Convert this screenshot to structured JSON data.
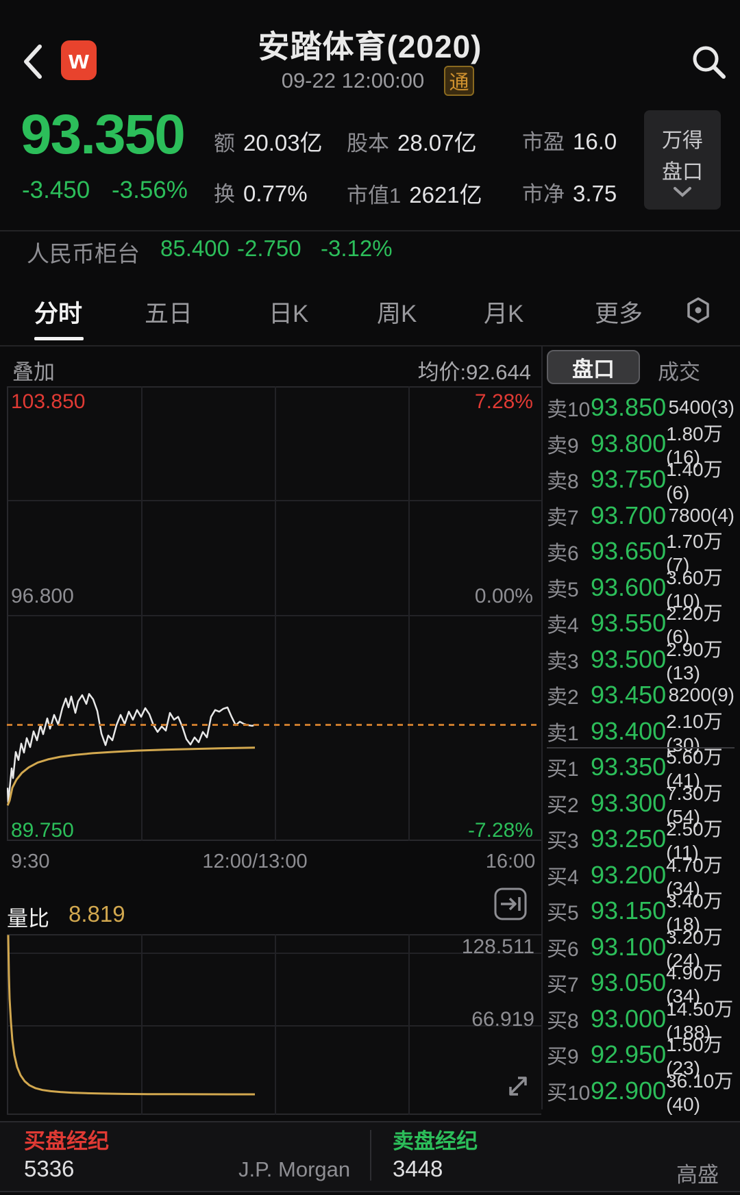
{
  "colors": {
    "up_red": "#e03a34",
    "down_green": "#2cbe5a",
    "avg_line_gold": "#d2a84f",
    "last_price_dash_orange": "#c97b2d",
    "price_line_white": "#e8e8e8",
    "badge_gold": "#d0922f",
    "logo_red": "#e8432d"
  },
  "header": {
    "title": "安踏体育(2020)",
    "datetime": "09-22 12:00:00",
    "badge": "通",
    "logo_letter": "w"
  },
  "quote": {
    "price": "93.350",
    "change": "-3.450",
    "change_pct": "-3.56%",
    "stats": [
      {
        "label": "额",
        "value": "20.03亿"
      },
      {
        "label": "股本",
        "value": "28.07亿"
      },
      {
        "label": "市盈",
        "value": "16.0"
      },
      {
        "label": "换",
        "value": "0.77%"
      },
      {
        "label": "市值1",
        "value": "2621亿"
      },
      {
        "label": "市净",
        "value": "3.75"
      }
    ],
    "wande_button_line1": "万得",
    "wande_button_line2": "盘口"
  },
  "rmb_counter": {
    "label": "人民币柜台",
    "price": "85.400",
    "change": "-2.750",
    "change_pct": "-3.12%"
  },
  "period_tabs": {
    "items": [
      {
        "label": "分时",
        "selected": true
      },
      {
        "label": "五日",
        "selected": false
      },
      {
        "label": "日K",
        "selected": false
      },
      {
        "label": "周K",
        "selected": false
      },
      {
        "label": "月K",
        "selected": false
      },
      {
        "label": "更多",
        "selected": false
      }
    ]
  },
  "chart_header": {
    "overlay_label": "叠加",
    "avg_price_label": "均价:92.644"
  },
  "chart_data": [
    {
      "type": "line",
      "title": "分时图 (intraday price)",
      "x_axis_labels": [
        "9:30",
        "12:00/13:00",
        "16:00"
      ],
      "ylim": [
        89.75,
        103.85
      ],
      "prev_close": 96.8,
      "last_price": 93.35,
      "avg_price": 92.644,
      "y_labels_left": [
        "103.850",
        "96.800",
        "89.750"
      ],
      "y_labels_right": [
        "7.28%",
        "0.00%",
        "-7.28%"
      ],
      "grid": true,
      "series": [
        {
          "name": "price",
          "color": "#e8e8e8",
          "width": 2.5,
          "points": [
            [
              1,
              91.4
            ],
            [
              2,
              90.95
            ],
            [
              4,
              91.36
            ],
            [
              7,
              92.0
            ],
            [
              9,
              91.7
            ],
            [
              13,
              92.51
            ],
            [
              17,
              92.26
            ],
            [
              21,
              92.77
            ],
            [
              25,
              92.49
            ],
            [
              29,
              92.94
            ],
            [
              34,
              92.66
            ],
            [
              39,
              93.15
            ],
            [
              44,
              92.87
            ],
            [
              49,
              93.34
            ],
            [
              53,
              93.06
            ],
            [
              59,
              93.55
            ],
            [
              63,
              93.23
            ],
            [
              69,
              93.66
            ],
            [
              75,
              93.36
            ],
            [
              81,
              93.87
            ],
            [
              86,
              94.17
            ],
            [
              90,
              93.89
            ],
            [
              94,
              94.23
            ],
            [
              100,
              93.72
            ],
            [
              104,
              94.08
            ],
            [
              110,
              94.27
            ],
            [
              116,
              94.0
            ],
            [
              120,
              94.31
            ],
            [
              126,
              94.14
            ],
            [
              132,
              93.78
            ],
            [
              138,
              93.08
            ],
            [
              144,
              92.72
            ],
            [
              148,
              93.02
            ],
            [
              154,
              92.87
            ],
            [
              160,
              93.34
            ],
            [
              166,
              93.66
            ],
            [
              172,
              93.38
            ],
            [
              178,
              93.76
            ],
            [
              184,
              93.51
            ],
            [
              190,
              93.81
            ],
            [
              196,
              93.6
            ],
            [
              202,
              93.87
            ],
            [
              208,
              93.68
            ],
            [
              214,
              93.34
            ],
            [
              220,
              93.13
            ],
            [
              226,
              93.3
            ],
            [
              232,
              93.17
            ],
            [
              238,
              93.72
            ],
            [
              244,
              93.51
            ],
            [
              250,
              93.6
            ],
            [
              256,
              93.3
            ],
            [
              262,
              92.91
            ],
            [
              268,
              92.74
            ],
            [
              274,
              92.96
            ],
            [
              280,
              92.81
            ],
            [
              286,
              93.13
            ],
            [
              292,
              92.96
            ],
            [
              298,
              93.6
            ],
            [
              304,
              93.81
            ],
            [
              310,
              93.76
            ],
            [
              316,
              93.85
            ],
            [
              322,
              93.89
            ],
            [
              328,
              93.6
            ],
            [
              334,
              93.34
            ],
            [
              340,
              93.45
            ],
            [
              346,
              93.38
            ],
            [
              352,
              93.34
            ],
            [
              358,
              93.32
            ],
            [
              362,
              93.35
            ]
          ]
        },
        {
          "name": "avg",
          "color": "#d2a84f",
          "width": 3,
          "points": [
            [
              1,
              90.85
            ],
            [
              4,
              91.0
            ],
            [
              8,
              91.4
            ],
            [
              14,
              91.65
            ],
            [
              22,
              91.86
            ],
            [
              32,
              92.03
            ],
            [
              45,
              92.18
            ],
            [
              60,
              92.28
            ],
            [
              78,
              92.36
            ],
            [
              100,
              92.42
            ],
            [
              125,
              92.47
            ],
            [
              155,
              92.51
            ],
            [
              190,
              92.55
            ],
            [
              230,
              92.58
            ],
            [
              270,
              92.6
            ],
            [
              310,
              92.62
            ],
            [
              362,
              92.644
            ]
          ]
        }
      ]
    },
    {
      "type": "line",
      "title": "量比 (volume ratio)",
      "label": "量比",
      "value": "8.819",
      "y_labels": [
        "128.511",
        "66.919"
      ],
      "ylim": [
        -8.6,
        144.8
      ],
      "grid": true,
      "series": [
        {
          "name": "volume_ratio",
          "color": "#d2a84f",
          "width": 3,
          "points": [
            [
              2,
              144
            ],
            [
              3,
              110
            ],
            [
              4,
              90
            ],
            [
              6,
              70
            ],
            [
              8,
              55
            ],
            [
              11,
              42
            ],
            [
              15,
              32
            ],
            [
              20,
              25
            ],
            [
              26,
              20
            ],
            [
              33,
              16.5
            ],
            [
              42,
              14
            ],
            [
              52,
              12.5
            ],
            [
              64,
              11.5
            ],
            [
              78,
              10.8
            ],
            [
              95,
              10.2
            ],
            [
              115,
              9.8
            ],
            [
              140,
              9.5
            ],
            [
              170,
              9.2
            ],
            [
              205,
              9.0
            ],
            [
              245,
              8.95
            ],
            [
              285,
              8.9
            ],
            [
              325,
              8.85
            ],
            [
              362,
              8.82
            ]
          ]
        }
      ]
    }
  ],
  "orderbook": {
    "tabs": [
      {
        "label": "盘口",
        "selected": true
      },
      {
        "label": "成交",
        "selected": false
      }
    ],
    "asks": [
      {
        "label": "卖10",
        "price": "93.850",
        "volume": "5400(3)"
      },
      {
        "label": "卖9",
        "price": "93.800",
        "volume": "1.80万(16)"
      },
      {
        "label": "卖8",
        "price": "93.750",
        "volume": "1.40万(6)"
      },
      {
        "label": "卖7",
        "price": "93.700",
        "volume": "7800(4)"
      },
      {
        "label": "卖6",
        "price": "93.650",
        "volume": "1.70万(7)"
      },
      {
        "label": "卖5",
        "price": "93.600",
        "volume": "3.60万(10)"
      },
      {
        "label": "卖4",
        "price": "93.550",
        "volume": "2.20万(6)"
      },
      {
        "label": "卖3",
        "price": "93.500",
        "volume": "2.90万(13)"
      },
      {
        "label": "卖2",
        "price": "93.450",
        "volume": "8200(9)"
      },
      {
        "label": "卖1",
        "price": "93.400",
        "volume": "2.10万(30)"
      }
    ],
    "bids": [
      {
        "label": "买1",
        "price": "93.350",
        "volume": "5.60万(41)"
      },
      {
        "label": "买2",
        "price": "93.300",
        "volume": "7.30万(54)"
      },
      {
        "label": "买3",
        "price": "93.250",
        "volume": "2.50万(11)"
      },
      {
        "label": "买4",
        "price": "93.200",
        "volume": "4.70万(34)"
      },
      {
        "label": "买5",
        "price": "93.150",
        "volume": "3.40万(18)"
      },
      {
        "label": "买6",
        "price": "93.100",
        "volume": "3.20万(24)"
      },
      {
        "label": "买7",
        "price": "93.050",
        "volume": "4.90万(34)"
      },
      {
        "label": "买8",
        "price": "93.000",
        "volume": "14.50万(188)"
      },
      {
        "label": "买9",
        "price": "92.950",
        "volume": "1.50万(23)"
      },
      {
        "label": "买10",
        "price": "92.900",
        "volume": "36.10万(40)"
      }
    ]
  },
  "brokers": {
    "buy_title": "买盘经纪",
    "buy_id": "5336",
    "buy_name": "J.P. Morgan",
    "sell_title": "卖盘经纪",
    "sell_id": "3448",
    "sell_name": "高盛"
  }
}
